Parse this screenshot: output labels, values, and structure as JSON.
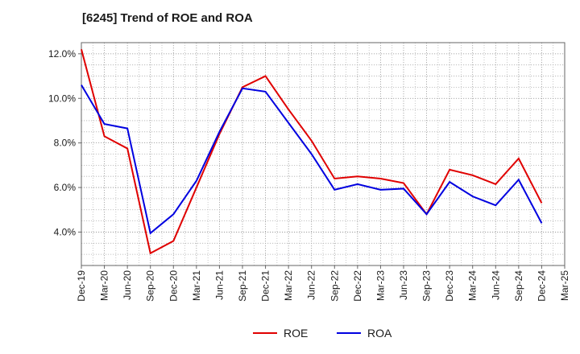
{
  "chart_data": {
    "type": "line",
    "title": "[6245]  Trend of ROE and ROA",
    "xlabel": "",
    "ylabel": "",
    "x_ticks": [
      "Dec-19",
      "Mar-20",
      "Jun-20",
      "Sep-20",
      "Dec-20",
      "Mar-21",
      "Jun-21",
      "Sep-21",
      "Dec-21",
      "Mar-22",
      "Jun-22",
      "Sep-22",
      "Dec-22",
      "Mar-23",
      "Jun-23",
      "Sep-23",
      "Dec-23",
      "Mar-24",
      "Jun-24",
      "Sep-24",
      "Dec-24",
      "Mar-25"
    ],
    "y_ticks": [
      "4.0%",
      "6.0%",
      "8.0%",
      "10.0%",
      "12.0%"
    ],
    "y_tick_values": [
      4,
      6,
      8,
      10,
      12
    ],
    "ylim": [
      2.5,
      12.5
    ],
    "y_unit": "%",
    "grid": true,
    "legend_position": "bottom-center",
    "series": [
      {
        "name": "ROE",
        "color": "#e00000",
        "x": [
          "Dec-19",
          "Mar-20",
          "Jun-20",
          "Sep-20",
          "Dec-20",
          "Mar-21",
          "Jun-21",
          "Sep-21",
          "Dec-21",
          "Mar-22",
          "Jun-22",
          "Sep-22",
          "Dec-22",
          "Mar-23",
          "Jun-23",
          "Sep-23",
          "Dec-23",
          "Mar-24",
          "Jun-24",
          "Sep-24",
          "Dec-24"
        ],
        "values": [
          12.2,
          8.3,
          7.75,
          3.05,
          3.6,
          6.0,
          8.4,
          10.5,
          11.0,
          9.5,
          8.1,
          6.4,
          6.5,
          6.4,
          6.2,
          4.8,
          6.8,
          6.55,
          6.15,
          7.3,
          5.3
        ]
      },
      {
        "name": "ROA",
        "color": "#0000e0",
        "x": [
          "Dec-19",
          "Mar-20",
          "Jun-20",
          "Sep-20",
          "Dec-20",
          "Mar-21",
          "Jun-21",
          "Sep-21",
          "Dec-21",
          "Mar-22",
          "Jun-22",
          "Sep-22",
          "Dec-22",
          "Mar-23",
          "Jun-23",
          "Sep-23",
          "Dec-23",
          "Mar-24",
          "Jun-24",
          "Sep-24",
          "Dec-24"
        ],
        "values": [
          10.6,
          8.85,
          8.65,
          3.95,
          4.8,
          6.3,
          8.5,
          10.45,
          10.3,
          8.9,
          7.5,
          5.9,
          6.15,
          5.9,
          5.95,
          4.8,
          6.25,
          5.6,
          5.2,
          6.35,
          4.4
        ]
      }
    ]
  }
}
